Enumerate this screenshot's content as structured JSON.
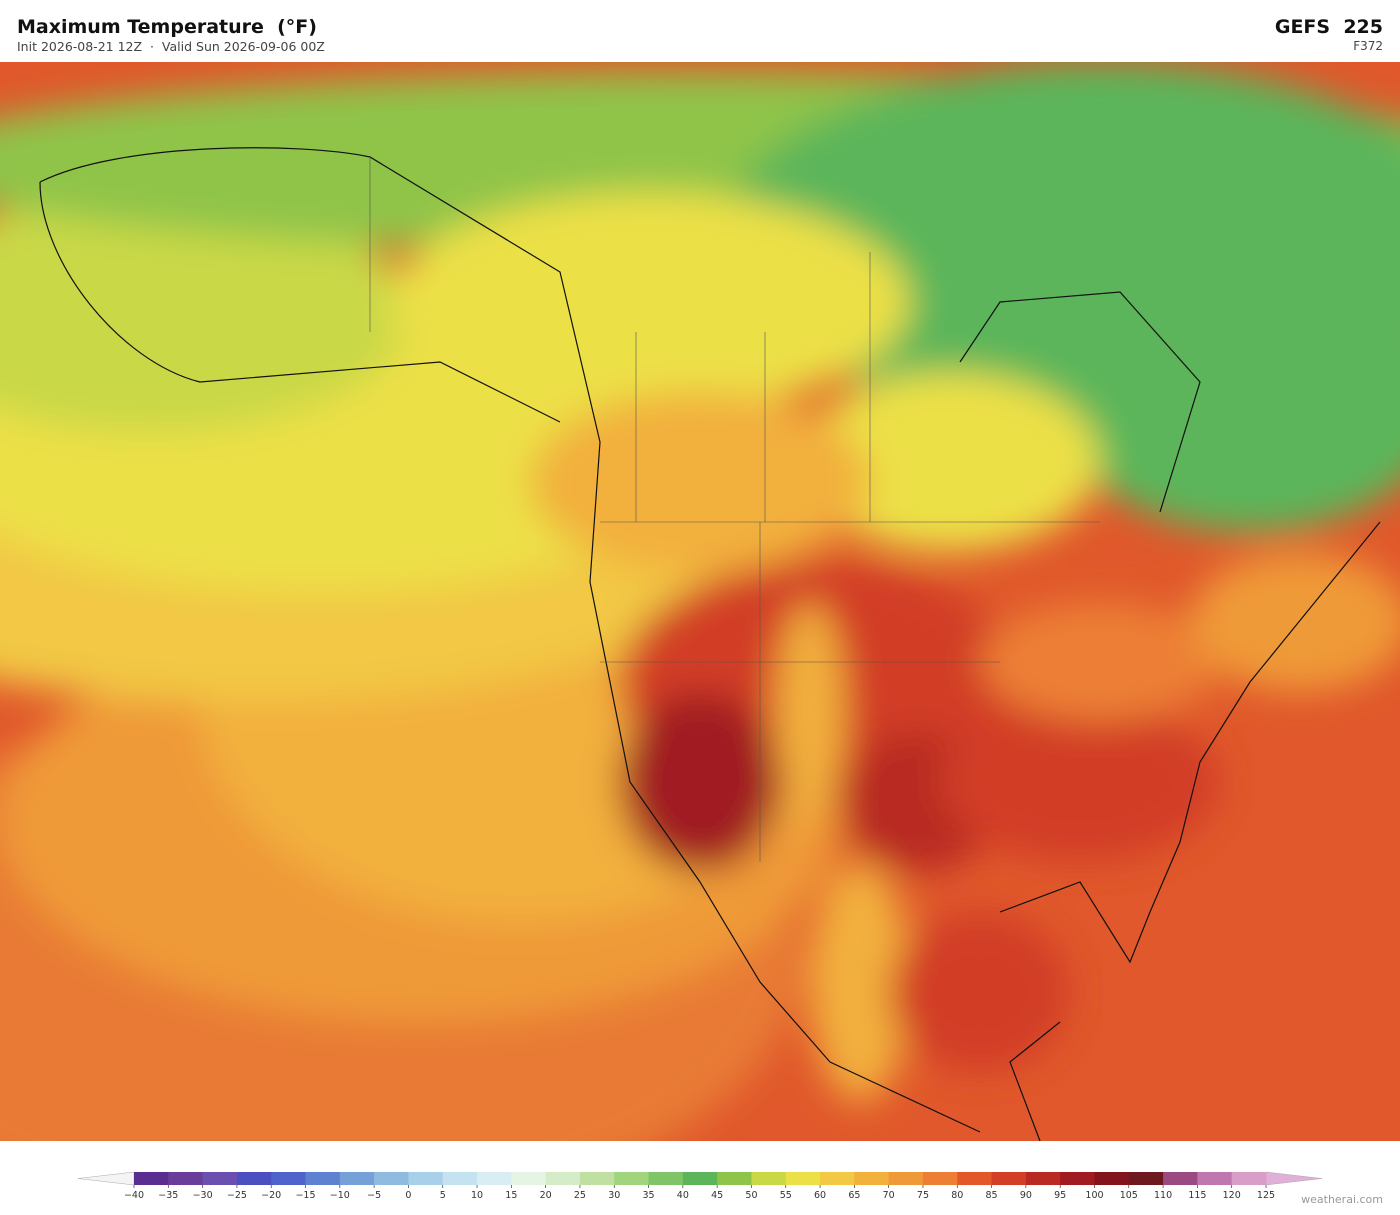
{
  "header": {
    "title": "Maximum Temperature  (°F)",
    "subtitle": "Init 2026-08-21 12Z  ·  Valid Sun 2026-09-06 00Z",
    "model": "GEFS  225",
    "forecast_hour": "F372"
  },
  "colorbar": {
    "ticks": [
      {
        "value": -40,
        "label": "−40"
      },
      {
        "value": -35,
        "label": "−35"
      },
      {
        "value": -30,
        "label": "−30"
      },
      {
        "value": -25,
        "label": "−25"
      },
      {
        "value": -20,
        "label": "−20"
      },
      {
        "value": -15,
        "label": "−15"
      },
      {
        "value": -10,
        "label": "−10"
      },
      {
        "value": -5,
        "label": "−5"
      },
      0,
      5,
      10,
      15,
      20,
      25,
      30,
      35,
      40,
      45,
      50,
      55,
      60,
      65,
      70,
      75,
      80,
      85,
      90,
      95,
      100,
      105,
      110,
      115,
      120,
      125
    ],
    "colors": [
      "#5a2d91",
      "#6a3d9a",
      "#6b4fb0",
      "#4b4fc0",
      "#4e63cc",
      "#5e82d0",
      "#76a0d8",
      "#8fbbe0",
      "#a9d0ea",
      "#c4e2f0",
      "#d9eef2",
      "#e6f4e6",
      "#d4ecc8",
      "#bfe0a0",
      "#a0d47f",
      "#7fc466",
      "#5cb55a",
      "#8fc44a",
      "#c9d846",
      "#ece047",
      "#f2c844",
      "#f2b03c",
      "#ef9a38",
      "#ec7f34",
      "#e3582a",
      "#d23e26",
      "#b82a22",
      "#a01c20",
      "#84141c",
      "#6e1820",
      "#9a4a80",
      "#c077b0",
      "#d89ec8"
    ],
    "under_color": "#f4f4f4",
    "over_color": "#e0b0d8"
  },
  "credit": "weatherai.com"
}
